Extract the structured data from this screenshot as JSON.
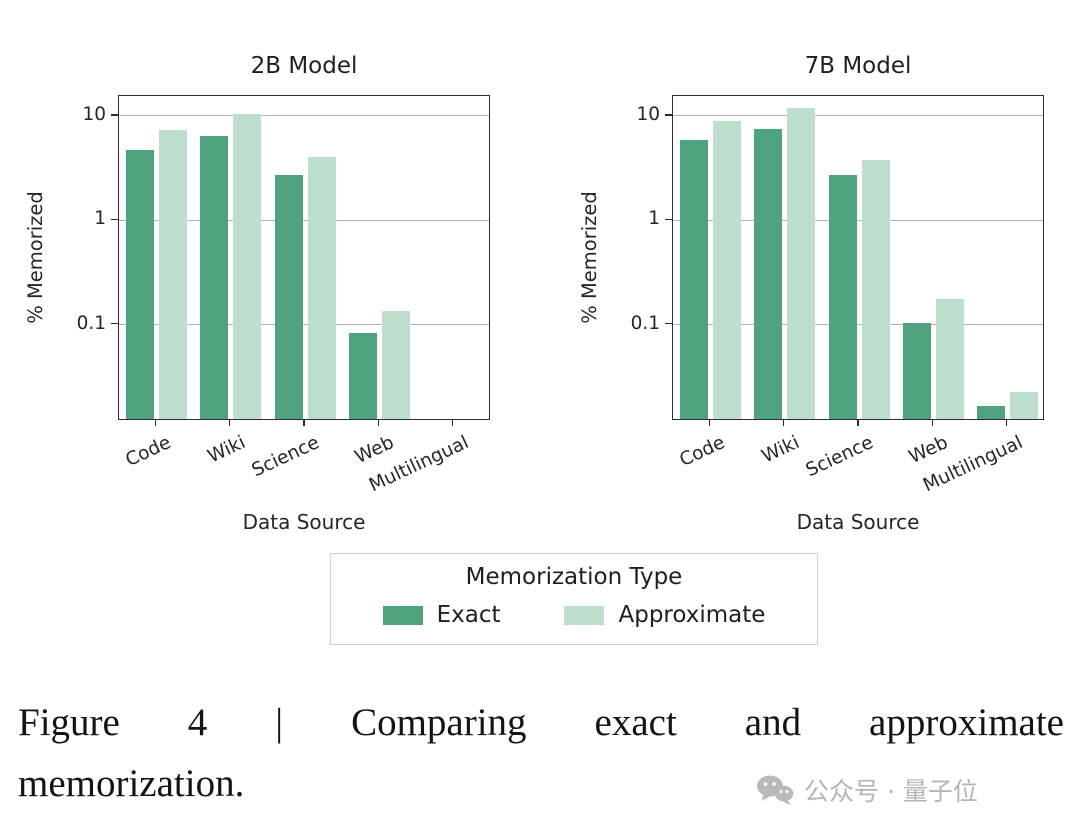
{
  "caption": {
    "line1": "Figure 4 | Comparing exact and approximate",
    "line2": "memorization."
  },
  "legend": {
    "title": "Memorization Type",
    "items": [
      {
        "label": "Exact",
        "color_key": "exact"
      },
      {
        "label": "Approximate",
        "color_key": "approximate"
      }
    ]
  },
  "watermark": {
    "text": "公众号 · 量子位",
    "icon": "wechat-icon"
  },
  "colors": {
    "exact": "#4fa37f",
    "approximate": "#bedfce",
    "grid": "#b3b3b3",
    "axis": "#2e2e2e",
    "text": "#262626",
    "caption_text": "#141414",
    "legend_border": "#cfcfcf",
    "watermark": "#b5b5b5",
    "background": "#ffffff"
  },
  "chart_data": [
    {
      "type": "bar",
      "title": "2B Model",
      "categories": [
        "Code",
        "Wiki",
        "Science",
        "Web",
        "Multilingual"
      ],
      "series": [
        {
          "name": "Exact",
          "values": [
            4.5,
            6.2,
            2.6,
            0.08,
            null
          ]
        },
        {
          "name": "Approximate",
          "values": [
            7.0,
            10.0,
            3.9,
            0.13,
            null
          ]
        }
      ],
      "xlabel": "Data Source",
      "ylabel": "% Memorized",
      "yscale": "log",
      "ylim": [
        0.012,
        15.5
      ],
      "yticks": [
        10,
        1,
        0.1
      ],
      "grid": true,
      "legend_position": "shared-below"
    },
    {
      "type": "bar",
      "title": "7B Model",
      "categories": [
        "Code",
        "Wiki",
        "Science",
        "Web",
        "Multilingual"
      ],
      "series": [
        {
          "name": "Exact",
          "values": [
            5.6,
            7.2,
            2.6,
            0.1,
            0.016
          ]
        },
        {
          "name": "Approximate",
          "values": [
            8.6,
            11.5,
            3.6,
            0.17,
            0.022
          ]
        }
      ],
      "xlabel": "Data Source",
      "ylabel": "% Memorized",
      "yscale": "log",
      "ylim": [
        0.012,
        15.5
      ],
      "yticks": [
        10,
        1,
        0.1
      ],
      "grid": true,
      "legend_position": "shared-below"
    }
  ]
}
